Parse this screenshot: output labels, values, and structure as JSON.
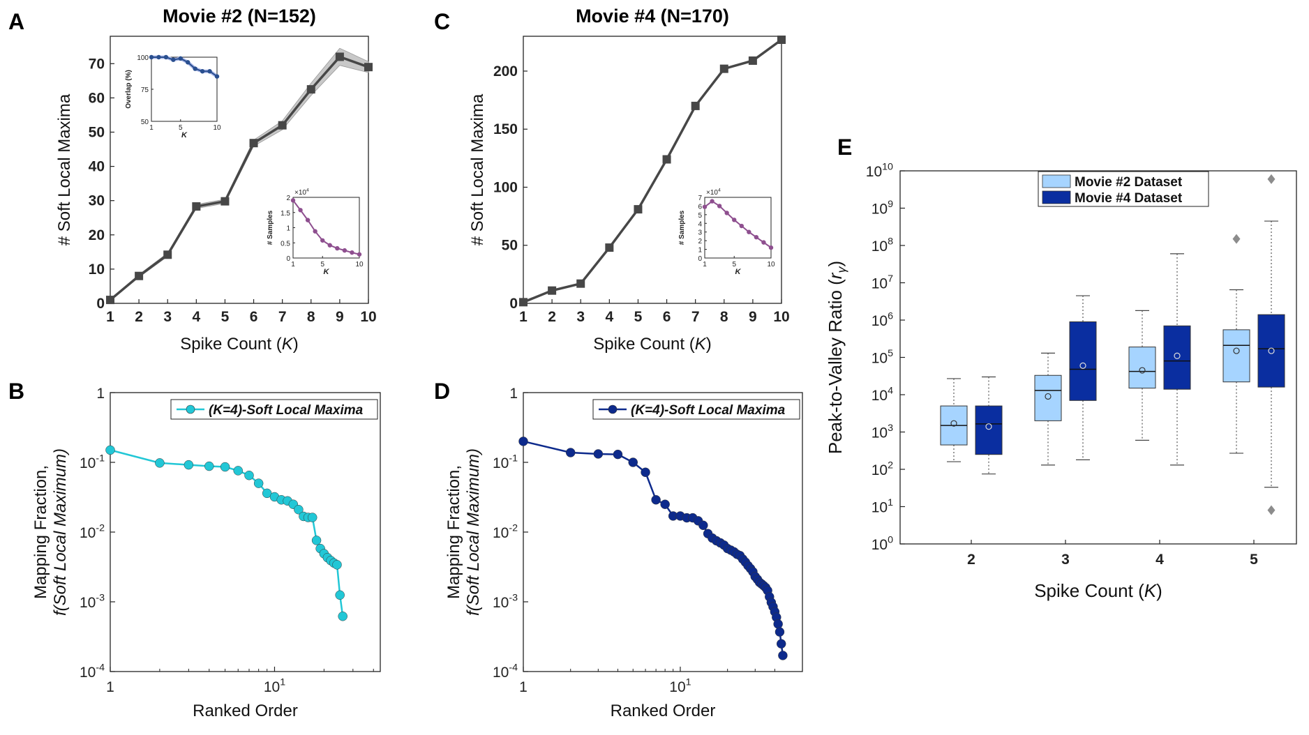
{
  "panel_letters": {
    "A": "A",
    "B": "B",
    "C": "C",
    "D": "D",
    "E": "E"
  },
  "chart_data": [
    {
      "panel": "A",
      "type": "line",
      "title": "Movie #2 (N=152)",
      "xlabel": "Spike Count",
      "xlabel_var": "K",
      "xlabel_close": ")",
      "ylabel": "# Soft Local Maxima",
      "x": [
        1,
        2,
        3,
        4,
        5,
        6,
        7,
        8,
        9,
        10
      ],
      "y": [
        1,
        8,
        14.2,
        28.3,
        29.8,
        46.8,
        52,
        62.5,
        72,
        69
      ],
      "band": [
        0.3,
        0.4,
        0.5,
        0.6,
        0.6,
        0.9,
        1.3,
        1.8,
        2.5,
        1.6
      ],
      "xlim": [
        1,
        10
      ],
      "ylim": [
        0,
        78
      ],
      "xticks": [
        "1",
        "2",
        "3",
        "4",
        "5",
        "6",
        "7",
        "8",
        "9",
        "10"
      ],
      "yticks": [
        0,
        10,
        20,
        30,
        40,
        50,
        60,
        70
      ],
      "color": "#474747",
      "band_color": "#c8c8c8",
      "insets": [
        {
          "type": "line",
          "xlabel": "K",
          "ylabel": "Overlap (%)",
          "x": [
            1,
            2,
            3,
            4,
            5,
            6,
            7,
            8,
            9,
            10
          ],
          "y": [
            100,
            100,
            100,
            98,
            99,
            96,
            91,
            89,
            89,
            85
          ],
          "xlim": [
            1,
            10
          ],
          "ylim": [
            50,
            100
          ],
          "xticks": [
            "1",
            "5",
            "10"
          ],
          "yticks": [
            50,
            75,
            100
          ],
          "color": "#2a4f8f",
          "band_color": "#a9b7e8"
        },
        {
          "type": "line",
          "xlabel": "K",
          "ylabel": "# Samples",
          "exponent": "×10^4",
          "x": [
            1,
            2,
            3,
            4,
            5,
            6,
            7,
            8,
            9,
            10
          ],
          "y": [
            1.9,
            1.58,
            1.25,
            0.88,
            0.58,
            0.42,
            0.32,
            0.25,
            0.18,
            0.12
          ],
          "xlim": [
            1,
            10
          ],
          "ylim": [
            0,
            2
          ],
          "xticks": [
            "1",
            "5",
            "10"
          ],
          "yticks": [
            "0",
            "0.5",
            "1",
            "1.5",
            "2"
          ],
          "color": "#8e4f8f"
        }
      ]
    },
    {
      "panel": "C",
      "type": "line",
      "title": "Movie #4 (N=170)",
      "xlabel": "Spike Count",
      "xlabel_var": "K",
      "xlabel_close": ")",
      "ylabel": "# Soft Local Maxima",
      "x": [
        1,
        2,
        3,
        4,
        5,
        6,
        7,
        8,
        9,
        10
      ],
      "y": [
        1,
        11,
        17,
        48,
        81,
        124,
        170,
        202,
        209,
        227
      ],
      "xlim": [
        1,
        10
      ],
      "ylim": [
        0,
        230
      ],
      "xticks": [
        "1",
        "2",
        "3",
        "4",
        "5",
        "6",
        "7",
        "8",
        "9",
        "10"
      ],
      "yticks": [
        0,
        50,
        100,
        150,
        200
      ],
      "color": "#474747",
      "insets": [
        {
          "type": "line",
          "xlabel": "K",
          "ylabel": "# Samples",
          "exponent": "×10^4",
          "x": [
            1,
            2,
            3,
            4,
            5,
            6,
            7,
            8,
            9,
            10
          ],
          "y": [
            5.9,
            6.55,
            6.0,
            5.2,
            4.4,
            3.7,
            3.0,
            2.4,
            1.8,
            1.2
          ],
          "xlim": [
            1,
            10
          ],
          "ylim": [
            0,
            7
          ],
          "xticks": [
            "1",
            "5",
            "10"
          ],
          "yticks": [
            "0",
            "1",
            "2",
            "3",
            "4",
            "5",
            "6",
            "7"
          ],
          "color": "#8e4f8f"
        }
      ]
    },
    {
      "panel": "B",
      "type": "line",
      "xscale": "log",
      "yscale": "log",
      "xlabel": "Ranked Order",
      "ylabel_line1": "Mapping Fraction,",
      "ylabel_line2": "f(Soft Local Maximum)",
      "legend": "(K=4)-Soft Local Maxima",
      "y": [
        0.15,
        0.098,
        0.092,
        0.088,
        0.086,
        0.076,
        0.065,
        0.05,
        0.036,
        0.032,
        0.029,
        0.028,
        0.025,
        0.021,
        0.0168,
        0.0162,
        0.0162,
        0.0076,
        0.0058,
        0.0049,
        0.0043,
        0.0039,
        0.0036,
        0.0034,
        0.00125,
        0.00062
      ],
      "xlim": [
        1,
        44
      ],
      "ylim": [
        0.0001,
        1
      ],
      "xticks": [
        "1",
        "10^1"
      ],
      "yticks": [
        "1",
        "10^-1",
        "10^-2",
        "10^-3",
        "10^-4"
      ],
      "color": "#22c7d6"
    },
    {
      "panel": "D",
      "type": "line",
      "xscale": "log",
      "yscale": "log",
      "xlabel": "Ranked Order",
      "ylabel_line1": "Mapping Fraction,",
      "ylabel_line2": "f(Soft Local Maximum)",
      "legend": "(K=4)-Soft Local Maxima",
      "y": [
        0.2,
        0.138,
        0.132,
        0.13,
        0.1,
        0.072,
        0.029,
        0.025,
        0.017,
        0.017,
        0.016,
        0.016,
        0.0145,
        0.0125,
        0.0095,
        0.0082,
        0.0075,
        0.007,
        0.0065,
        0.0058,
        0.0055,
        0.0052,
        0.0048,
        0.0046,
        0.0041,
        0.0037,
        0.0033,
        0.003,
        0.0027,
        0.0023,
        0.0021,
        0.0019,
        0.0018,
        0.0017,
        0.0016,
        0.00145,
        0.00118,
        0.00098,
        0.00085,
        0.00072,
        0.0006,
        0.00048,
        0.00037,
        0.00025,
        0.00017
      ],
      "xlim": [
        1,
        60
      ],
      "ylim": [
        0.0001,
        1
      ],
      "xticks": [
        "1",
        "10^1"
      ],
      "yticks": [
        "1",
        "10^-1",
        "10^-2",
        "10^-3",
        "10^-4"
      ],
      "color": "#0d2a8c"
    },
    {
      "panel": "E",
      "type": "box",
      "yscale": "log",
      "xlabel": "Spike Count",
      "xlabel_var": "K",
      "xlabel_close": ")",
      "ylabel": "Peak-to-Valley Ratio",
      "ylabel_var": "r",
      "ylabel_sub": "γ",
      "categories": [
        "2",
        "3",
        "4",
        "5"
      ],
      "ylim_exp": [
        0,
        10
      ],
      "yticks": [
        "10^0",
        "10^1",
        "10^2",
        "10^3",
        "10^4",
        "10^5",
        "10^6",
        "10^7",
        "10^8",
        "10^9",
        "10^10"
      ],
      "series": [
        {
          "name": "Movie #2 Dataset",
          "color": "#a6d4ff",
          "boxes": [
            {
              "whisker_low": 160,
              "q1": 450,
              "median": 1500,
              "q3": 5000,
              "whisker_high": 27000,
              "mean": 1700,
              "outliers": []
            },
            {
              "whisker_low": 130,
              "q1": 2000,
              "median": 13000,
              "q3": 33000,
              "whisker_high": 130000,
              "mean": 9000,
              "outliers": []
            },
            {
              "whisker_low": 600,
              "q1": 15000,
              "median": 42000,
              "q3": 190000,
              "whisker_high": 1800000,
              "mean": 45000,
              "outliers": []
            },
            {
              "whisker_low": 270,
              "q1": 22000,
              "median": 210000,
              "q3": 550000,
              "whisker_high": 6500000,
              "mean": 150000,
              "outliers": [
                150000000
              ]
            }
          ]
        },
        {
          "name": "Movie #4 Dataset",
          "color": "#0a2ea0",
          "boxes": [
            {
              "whisker_low": 75,
              "q1": 250,
              "median": 1650,
              "q3": 5000,
              "whisker_high": 30000,
              "mean": 1400,
              "outliers": []
            },
            {
              "whisker_low": 180,
              "q1": 7000,
              "median": 48000,
              "q3": 900000,
              "whisker_high": 4500000,
              "mean": 60000,
              "outliers": []
            },
            {
              "whisker_low": 130,
              "q1": 14000,
              "median": 80000,
              "q3": 700000,
              "whisker_high": 60000000,
              "mean": 110000,
              "outliers": []
            },
            {
              "whisker_low": 33,
              "q1": 16000,
              "median": 170000,
              "q3": 1400000,
              "whisker_high": 450000000,
              "mean": 150000,
              "outliers": [
                6000000000,
                8
              ]
            }
          ]
        }
      ]
    }
  ]
}
